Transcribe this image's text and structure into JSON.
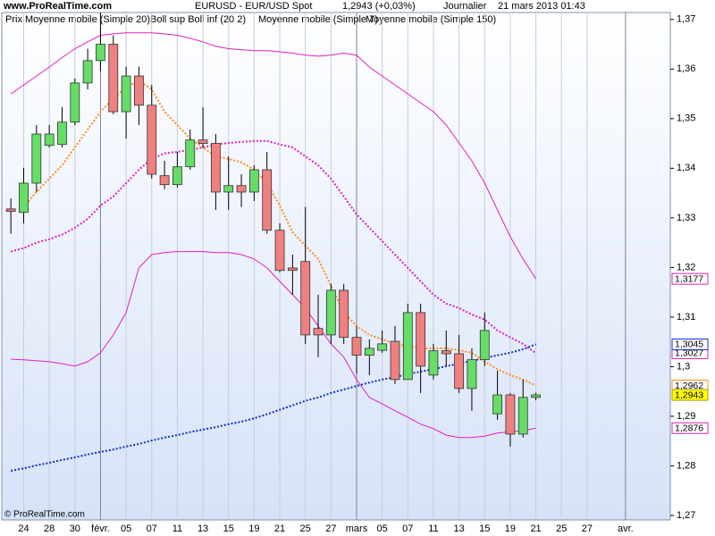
{
  "chart_data": {
    "type": "candlestick",
    "header": {
      "site": "www.ProRealTime.com",
      "instrument": "EURUSD - EUR/USD Spot",
      "price": "1,2943 (+0,03%)",
      "period": "Journalier",
      "date": "21 mars 2013 01:43"
    },
    "footer": "© ProRealTime.com",
    "categories": [
      null,
      "24",
      null,
      "28",
      null,
      "30",
      null,
      "févr.",
      null,
      "05",
      null,
      "07",
      null,
      "11",
      null,
      "13",
      null,
      "15",
      null,
      "19",
      null,
      "21",
      null,
      "25",
      null,
      "27",
      null,
      "mars",
      null,
      "05",
      null,
      "07",
      null,
      "11",
      null,
      "13",
      null,
      "15",
      null,
      "19",
      null,
      "21",
      null,
      "25",
      null,
      "27",
      null,
      null,
      "avr.",
      null,
      null,
      null
    ],
    "ylim": [
      1.2691,
      1.3714
    ],
    "yticks": [
      {
        "value": 1.37,
        "label": "1,37"
      },
      {
        "value": 1.36,
        "label": "1,36"
      },
      {
        "value": 1.35,
        "label": "1,35"
      },
      {
        "value": 1.34,
        "label": "1,34"
      },
      {
        "value": 1.33,
        "label": "1,33"
      },
      {
        "value": 1.32,
        "label": "1,32"
      },
      {
        "value": 1.31,
        "label": "1,31"
      },
      {
        "value": 1.3,
        "label": "1,3"
      },
      {
        "value": 1.29,
        "label": "1,29"
      },
      {
        "value": 1.28,
        "label": "1,28"
      },
      {
        "value": 1.27,
        "label": "1,27"
      }
    ],
    "grid": "x",
    "candles": {
      "name": "Prix",
      "color": "#333333",
      "color_up": "#66dd66",
      "color_down": "#f08080",
      "open": [
        1.3318,
        1.3311,
        1.337,
        1.3446,
        1.3448,
        1.3493,
        1.3572,
        1.3617,
        1.365,
        1.3514,
        1.3586,
        1.3527,
        1.3385,
        1.3367,
        1.3403,
        1.3457,
        1.345,
        1.3352,
        1.3365,
        1.3352,
        1.3397,
        1.3275,
        1.3199,
        1.3212,
        1.3077,
        1.3064,
        1.3154,
        1.3059,
        1.3023,
        1.3033,
        1.3051,
        1.2974,
        1.3109,
        1.2983,
        1.3032,
        1.3026,
        1.2956,
        1.3014,
        1.2905,
        1.2943,
        1.2864,
        1.2938,
        null,
        null,
        null,
        null,
        null,
        null,
        null,
        null,
        null,
        null
      ],
      "high": [
        1.3339,
        1.3401,
        1.3487,
        1.3487,
        1.3523,
        1.3581,
        1.3641,
        1.3713,
        1.3668,
        1.3605,
        1.3605,
        1.3568,
        1.3415,
        1.3433,
        1.3478,
        1.3523,
        1.3469,
        1.3424,
        1.3388,
        1.3406,
        1.3433,
        1.3289,
        1.3226,
        1.3322,
        1.3145,
        1.3167,
        1.3167,
        1.3082,
        1.3055,
        1.3073,
        1.3082,
        1.3127,
        1.3127,
        1.3046,
        1.3073,
        1.3064,
        1.3037,
        1.3109,
        1.2992,
        1.2947,
        1.2974,
        1.2947,
        null,
        null,
        null,
        null,
        null,
        null,
        null,
        null,
        null,
        null
      ],
      "low": [
        1.3268,
        1.3289,
        1.3352,
        1.3442,
        1.3442,
        1.3487,
        1.3559,
        1.3596,
        1.3509,
        1.346,
        1.3487,
        1.3379,
        1.3358,
        1.3361,
        1.3397,
        1.3442,
        1.3316,
        1.3316,
        1.3322,
        1.3334,
        1.3268,
        1.319,
        1.3145,
        1.3046,
        1.3019,
        1.3046,
        1.3046,
        1.2986,
        1.2983,
        1.3028,
        1.2965,
        1.2974,
        1.2947,
        1.2974,
        1.3001,
        1.2947,
        1.2911,
        1.3001,
        1.2893,
        1.2839,
        1.2857,
        1.2932,
        null,
        null,
        null,
        null,
        null,
        null,
        null,
        null,
        null,
        null
      ],
      "close": [
        1.3313,
        1.337,
        1.3469,
        1.3469,
        1.3493,
        1.3572,
        1.3617,
        1.365,
        1.3514,
        1.3586,
        1.3527,
        1.3388,
        1.3367,
        1.3403,
        1.3457,
        1.345,
        1.3352,
        1.3365,
        1.3352,
        1.3397,
        1.3275,
        1.3194,
        1.3194,
        1.3064,
        1.3064,
        1.3154,
        1.3059,
        1.3023,
        1.3037,
        1.3046,
        1.2974,
        1.3109,
        1.3001,
        1.3032,
        1.3026,
        1.2956,
        1.3014,
        1.3073,
        1.2943,
        1.2864,
        1.2938,
        1.2943,
        null,
        null,
        null,
        null,
        null,
        null,
        null,
        null,
        null,
        null
      ],
      "value_labels": [
        null,
        null,
        null,
        null,
        null,
        null,
        null,
        null,
        null,
        null,
        null,
        null,
        null,
        null,
        null,
        null,
        null,
        null,
        null,
        null,
        null,
        null,
        null,
        null,
        null,
        null,
        null,
        null,
        null,
        null,
        null,
        null,
        null,
        null,
        null,
        null,
        null,
        null,
        null,
        null,
        null,
        "1,2943",
        null,
        null,
        null,
        null,
        null,
        null,
        null,
        null,
        null,
        null
      ]
    },
    "indicators": [
      {
        "name": "Moyenne mobile (Simple 20)",
        "color": "#e020c0",
        "dotted": true,
        "lines": [
          {
            "values": [
              1.3232,
              1.3239,
              1.325,
              1.3257,
              1.3266,
              1.328,
              1.3298,
              1.3325,
              1.3343,
              1.337,
              1.3397,
              1.3419,
              1.343,
              1.3433,
              1.3437,
              1.3442,
              1.3448,
              1.3451,
              1.3453,
              1.3455,
              1.3455,
              1.3448,
              1.3442,
              1.3424,
              1.3406,
              1.3379,
              1.3343,
              1.3307,
              1.328,
              1.3253,
              1.3226,
              1.3199,
              1.3172,
              1.3145,
              1.3127,
              1.3118,
              1.3105,
              1.3095,
              1.3073,
              1.3059,
              1.3046,
              1.3027,
              null,
              null,
              null,
              null,
              null,
              null,
              null,
              null,
              null,
              null
            ],
            "value_labels": [
              null,
              null,
              null,
              null,
              null,
              null,
              null,
              null,
              null,
              null,
              null,
              null,
              null,
              null,
              null,
              null,
              null,
              null,
              null,
              null,
              null,
              null,
              null,
              null,
              null,
              null,
              null,
              null,
              null,
              null,
              null,
              null,
              null,
              null,
              null,
              null,
              null,
              null,
              null,
              null,
              null,
              "1,3027",
              null,
              null,
              null,
              null,
              null,
              null,
              null,
              null,
              null,
              null
            ]
          }
        ]
      },
      {
        "name": "Boll sup Boll inf (20 2)",
        "color": "#e020c0",
        "dotted": false,
        "lines": [
          {
            "values": [
              1.355,
              1.3568,
              1.3586,
              1.3604,
              1.3623,
              1.3641,
              1.3655,
              1.3668,
              1.3671,
              1.3673,
              1.3673,
              1.3673,
              1.3671,
              1.3668,
              1.3662,
              1.3655,
              1.3646,
              1.3641,
              1.3639,
              1.3637,
              1.3637,
              1.3635,
              1.3632,
              1.3628,
              1.3626,
              1.3628,
              1.3632,
              1.3628,
              1.3604,
              1.3586,
              1.3568,
              1.355,
              1.3532,
              1.3514,
              1.3487,
              1.3451,
              1.3415,
              1.337,
              1.3316,
              1.3262,
              1.3217,
              1.3177,
              null,
              null,
              null,
              null,
              null,
              null,
              null,
              null,
              null,
              null
            ],
            "value_labels": [
              null,
              null,
              null,
              null,
              null,
              null,
              null,
              null,
              null,
              null,
              null,
              null,
              null,
              null,
              null,
              null,
              null,
              null,
              null,
              null,
              null,
              null,
              null,
              null,
              null,
              null,
              null,
              null,
              null,
              null,
              null,
              null,
              null,
              null,
              null,
              null,
              null,
              null,
              null,
              null,
              null,
              "1,3177",
              null,
              null,
              null,
              null,
              null,
              null,
              null,
              null,
              null,
              null
            ]
          },
          {
            "values": [
              1.3015,
              1.3014,
              1.3012,
              1.301,
              1.3006,
              1.3001,
              1.301,
              1.3028,
              1.3064,
              1.3109,
              1.3199,
              1.3226,
              1.323,
              1.3232,
              1.3232,
              1.3232,
              1.323,
              1.323,
              1.3226,
              1.3217,
              1.3199,
              1.3172,
              1.3145,
              1.3118,
              1.3082,
              1.3046,
              1.3019,
              1.2974,
              1.2938,
              1.2925,
              1.2911,
              1.2898,
              1.2884,
              1.2875,
              1.2862,
              1.2857,
              1.2857,
              1.286,
              1.2866,
              1.2869,
              1.2871,
              1.2876,
              null,
              null,
              null,
              null,
              null,
              null,
              null,
              null,
              null,
              null
            ],
            "value_labels": [
              null,
              null,
              null,
              null,
              null,
              null,
              null,
              null,
              null,
              null,
              null,
              null,
              null,
              null,
              null,
              null,
              null,
              null,
              null,
              null,
              null,
              null,
              null,
              null,
              null,
              null,
              null,
              null,
              null,
              null,
              null,
              null,
              null,
              null,
              null,
              null,
              null,
              null,
              null,
              null,
              null,
              "1,2876",
              null,
              null,
              null,
              null,
              null,
              null,
              null,
              null,
              null,
              null
            ]
          }
        ]
      },
      {
        "name": "Moyenne mobile (Simple 7)",
        "color": "#ff8c1a",
        "dotted": true,
        "lines": [
          {
            "values": [
              null,
              1.3322,
              1.3352,
              1.3379,
              1.3406,
              1.3442,
              1.3478,
              1.3514,
              1.3541,
              1.3563,
              1.3577,
              1.3559,
              1.3514,
              1.3487,
              1.346,
              1.3442,
              1.3424,
              1.3419,
              1.3412,
              1.3397,
              1.337,
              1.3325,
              1.3271,
              1.3244,
              1.3217,
              1.3163,
              1.3109,
              1.3082,
              1.3064,
              1.3055,
              1.3046,
              1.3041,
              1.3037,
              1.3037,
              1.3037,
              1.3033,
              1.3028,
              1.301,
              1.2995,
              1.2983,
              1.2974,
              1.2962,
              null,
              null,
              null,
              null,
              null,
              null,
              null,
              null,
              null,
              null
            ],
            "value_labels": [
              null,
              null,
              null,
              null,
              null,
              null,
              null,
              null,
              null,
              null,
              null,
              null,
              null,
              null,
              null,
              null,
              null,
              null,
              null,
              null,
              null,
              null,
              null,
              null,
              null,
              null,
              null,
              null,
              null,
              null,
              null,
              null,
              null,
              null,
              null,
              null,
              null,
              null,
              null,
              null,
              null,
              "1,2962",
              null,
              null,
              null,
              null,
              null,
              null,
              null,
              null,
              null,
              null
            ]
          }
        ]
      },
      {
        "name": "Moyenne mobile (Simple 150)",
        "color": "#1030c0",
        "dotted": true,
        "lines": [
          {
            "values": [
              1.279,
              1.2795,
              1.2801,
              1.2806,
              1.2812,
              1.2817,
              1.2823,
              1.2828,
              1.2833,
              1.2839,
              1.2844,
              1.2851,
              1.2857,
              1.2862,
              1.2868,
              1.2873,
              1.2878,
              1.2884,
              1.2889,
              1.2896,
              1.2904,
              1.2913,
              1.2922,
              1.2931,
              1.2938,
              1.2947,
              1.2954,
              1.2961,
              1.2968,
              1.2974,
              1.2979,
              1.2985,
              1.299,
              1.2995,
              1.3001,
              1.3006,
              1.3012,
              1.3017,
              1.3023,
              1.3028,
              1.3035,
              1.3045,
              null,
              null,
              null,
              null,
              null,
              null,
              null,
              null,
              null,
              null
            ],
            "value_labels": [
              null,
              null,
              null,
              null,
              null,
              null,
              null,
              null,
              null,
              null,
              null,
              null,
              null,
              null,
              null,
              null,
              null,
              null,
              null,
              null,
              null,
              null,
              null,
              null,
              null,
              null,
              null,
              null,
              null,
              null,
              null,
              null,
              null,
              null,
              null,
              null,
              null,
              null,
              null,
              null,
              null,
              "1,3045",
              null,
              null,
              null,
              null,
              null,
              null,
              null,
              null,
              null,
              null
            ]
          }
        ]
      }
    ]
  }
}
